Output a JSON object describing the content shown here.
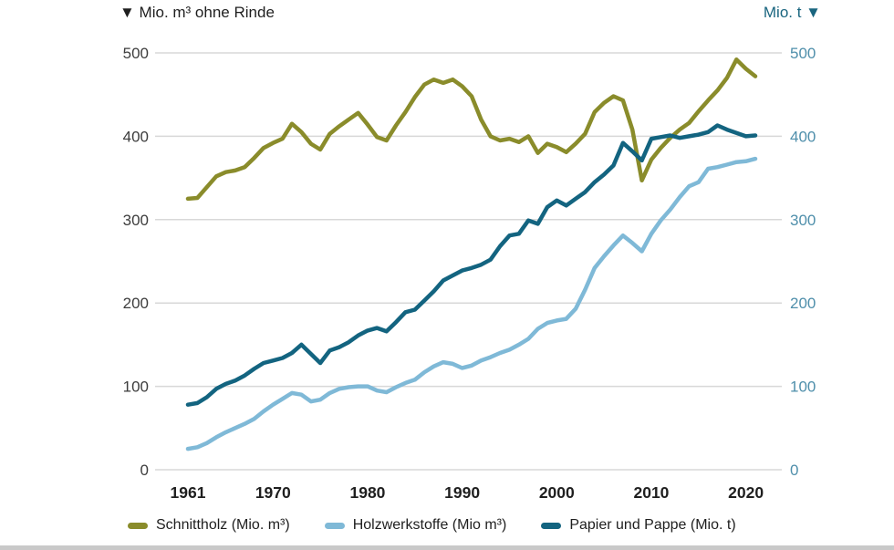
{
  "page": {
    "background": "#ffffff",
    "bottom_edge_color": "#c9c9c9"
  },
  "chart_data": {
    "type": "line",
    "title_left": "▼ Mio. m³ ohne Rinde",
    "title_right": "Mio. t ▼",
    "x_start": 1961,
    "x_end": 2021,
    "x_ticks": [
      "1961",
      "1970",
      "1980",
      "1990",
      "2000",
      "2010",
      "2020"
    ],
    "x_tick_years": [
      1961,
      1970,
      1980,
      1990,
      2000,
      2010,
      2020
    ],
    "y_ticks": [
      0,
      100,
      200,
      300,
      400,
      500
    ],
    "ylim": [
      0,
      500
    ],
    "grid": "horizontal",
    "legend_position": "bottom",
    "axis_colors": {
      "left_ticks": "#3d3d3d",
      "right_ticks": "#4f8fab",
      "x_ticks": "#1f1f1f",
      "grid": "#d8d8d8",
      "title_left": "#1f1f1f",
      "title_right": "#19657f"
    },
    "series": [
      {
        "name": "Schnittholz",
        "legend_label": "Schnittholz (Mio. m³)",
        "unit": "Mio. m³",
        "color": "#8a8c2b",
        "values": [
          325,
          326,
          339,
          352,
          357,
          359,
          363,
          374,
          386,
          392,
          397,
          415,
          405,
          391,
          384,
          403,
          412,
          420,
          428,
          414,
          399,
          395,
          413,
          429,
          447,
          462,
          468,
          464,
          468,
          460,
          448,
          420,
          400,
          395,
          397,
          393,
          400,
          380,
          391,
          387,
          381,
          391,
          403,
          429,
          440,
          448,
          443,
          408,
          347,
          372,
          386,
          398,
          408,
          416,
          430,
          443,
          455,
          470,
          492,
          481,
          472
        ]
      },
      {
        "name": "Holzwerkstoffe",
        "legend_label": "Holzwerkstoffe (Mio m³)",
        "unit": "Mio m³",
        "color": "#7fb9d7",
        "values": [
          25,
          27,
          32,
          39,
          45,
          50,
          55,
          61,
          70,
          78,
          85,
          92,
          90,
          82,
          84,
          92,
          97,
          99,
          100,
          100,
          95,
          93,
          99,
          104,
          108,
          117,
          124,
          129,
          127,
          122,
          125,
          131,
          135,
          140,
          144,
          150,
          157,
          169,
          176,
          179,
          181,
          193,
          216,
          242,
          256,
          269,
          281,
          272,
          262,
          283,
          299,
          312,
          327,
          340,
          345,
          361,
          363,
          366,
          369,
          370,
          373
        ]
      },
      {
        "name": "Papier und Pappe",
        "legend_label": "Papier und Pappe (Mio. t)",
        "unit": "Mio. t",
        "color": "#136480",
        "values": [
          78,
          80,
          87,
          97,
          103,
          107,
          113,
          121,
          128,
          131,
          134,
          140,
          150,
          139,
          128,
          143,
          147,
          153,
          161,
          167,
          170,
          166,
          177,
          189,
          192,
          203,
          214,
          227,
          233,
          239,
          242,
          246,
          252,
          268,
          281,
          283,
          299,
          295,
          315,
          323,
          317,
          325,
          333,
          345,
          354,
          365,
          392,
          382,
          371,
          397,
          399,
          401,
          398,
          400,
          402,
          405,
          413,
          408,
          404,
          400,
          401
        ]
      }
    ]
  }
}
